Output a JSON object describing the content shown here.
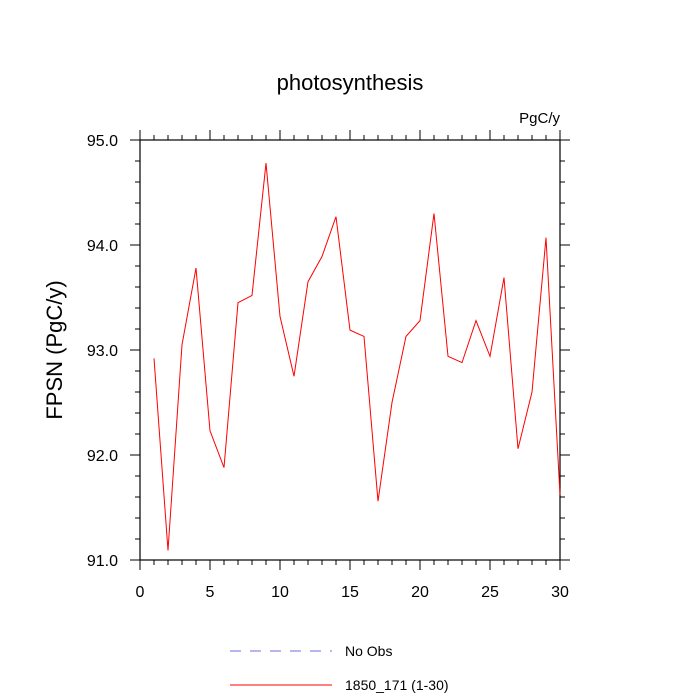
{
  "chart_data": {
    "type": "line",
    "title": "photosynthesis",
    "units": "PgC/y",
    "ylabel": "FPSN  (PgC/y)",
    "xlabel": "",
    "xlim": [
      0,
      30
    ],
    "ylim": [
      91.0,
      95.0
    ],
    "xticks": [
      "0",
      "5",
      "10",
      "15",
      "20",
      "25",
      "30"
    ],
    "yticks": [
      "91.0",
      "92.0",
      "93.0",
      "94.0",
      "95.0"
    ],
    "grid": false,
    "legend_position": "bottom",
    "series": [
      {
        "name": "1850_171 (1-30)",
        "color": "#ff0000",
        "style": "solid",
        "x": [
          1,
          2,
          3,
          4,
          5,
          6,
          7,
          8,
          9,
          10,
          11,
          12,
          13,
          14,
          15,
          16,
          17,
          18,
          19,
          20,
          21,
          22,
          23,
          24,
          25,
          26,
          27,
          28,
          29,
          30
        ],
        "y": [
          92.92,
          91.09,
          93.05,
          93.78,
          92.23,
          91.88,
          93.45,
          93.52,
          94.78,
          93.32,
          92.75,
          93.65,
          93.89,
          94.27,
          93.19,
          93.13,
          91.56,
          92.5,
          93.13,
          93.28,
          94.3,
          92.94,
          92.88,
          93.28,
          92.94,
          93.69,
          92.06,
          92.6,
          94.07,
          91.62
        ]
      }
    ],
    "legend": [
      {
        "label": "No Obs",
        "color": "#6f6fe0",
        "style": "dashed"
      },
      {
        "label": "1850_171 (1-30)",
        "color": "#ff0000",
        "style": "solid"
      }
    ]
  }
}
